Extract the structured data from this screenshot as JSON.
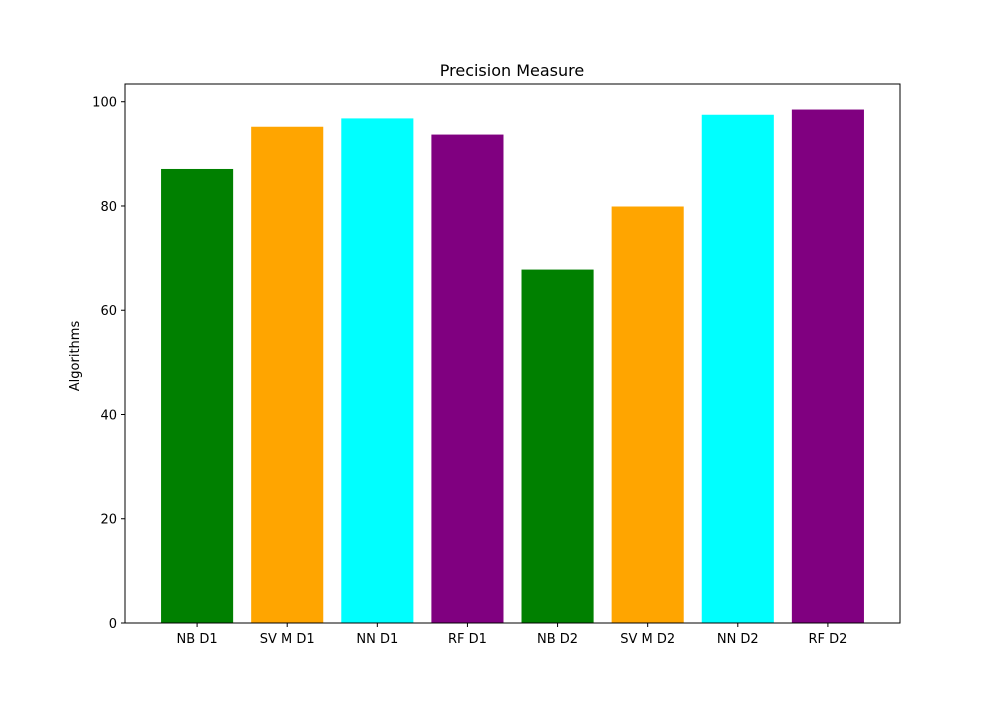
{
  "chart_data": {
    "type": "bar",
    "title": "Precision Measure",
    "xlabel": "",
    "ylabel": "Algorithms",
    "categories": [
      "NB D1",
      "SV M D1",
      "NN D1",
      "RF D1",
      "NB D2",
      "SV M D2",
      "NN D2",
      "RF D2"
    ],
    "values": [
      87.1,
      95.2,
      96.8,
      93.7,
      67.8,
      79.9,
      97.5,
      98.5
    ],
    "colors": [
      "#008000",
      "#ffa500",
      "#00ffff",
      "#800080",
      "#008000",
      "#ffa500",
      "#00ffff",
      "#800080"
    ],
    "ylim": [
      0,
      103.4
    ],
    "yticks": [
      0,
      20,
      40,
      60,
      80,
      100
    ],
    "grid": false,
    "legend": "none"
  }
}
